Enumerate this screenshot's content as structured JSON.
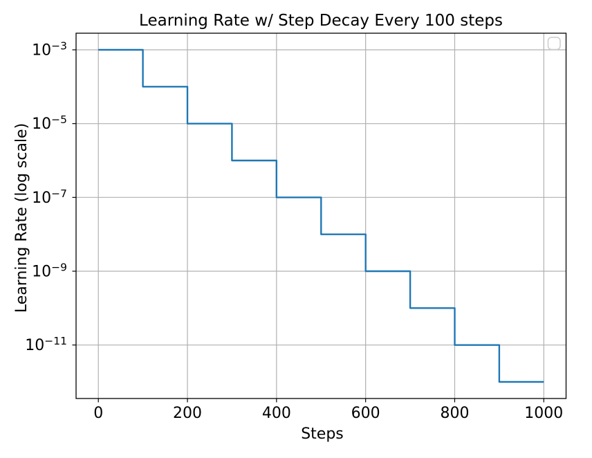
{
  "chart_data": {
    "type": "line",
    "line_style": "step-post",
    "title": "Learning Rate w/ Step Decay Every 100 steps",
    "xlabel": "Steps",
    "ylabel": "Learning Rate (log scale)",
    "x_ticks": [
      0,
      200,
      400,
      600,
      800,
      1000
    ],
    "y_scale": "log",
    "y_tick_exponents": [
      -3,
      -5,
      -7,
      -9,
      -11
    ],
    "xlim": [
      -50,
      1050
    ],
    "ylim_log10": [
      -12.45,
      -2.55
    ],
    "grid": true,
    "background_color": "#ffffff",
    "line_color": "#1f77b4",
    "grid_color": "#b0b0b0",
    "spine_color": "#000000",
    "legend": {
      "visible": true,
      "entries": [],
      "position": "upper right",
      "edge_color": "#cccccc"
    },
    "series": [
      {
        "name": "learning_rate",
        "initial_lr": 0.001,
        "decay_factor": 0.1,
        "decay_every_steps": 100,
        "segments": [
          {
            "x0": 0,
            "x1": 100,
            "lr": 0.001
          },
          {
            "x0": 100,
            "x1": 200,
            "lr": 0.0001
          },
          {
            "x0": 200,
            "x1": 300,
            "lr": 1e-05
          },
          {
            "x0": 300,
            "x1": 400,
            "lr": 1e-06
          },
          {
            "x0": 400,
            "x1": 500,
            "lr": 1e-07
          },
          {
            "x0": 500,
            "x1": 600,
            "lr": 1e-08
          },
          {
            "x0": 600,
            "x1": 700,
            "lr": 1e-09
          },
          {
            "x0": 700,
            "x1": 800,
            "lr": 1e-10
          },
          {
            "x0": 800,
            "x1": 900,
            "lr": 1e-11
          },
          {
            "x0": 900,
            "x1": 1000,
            "lr": 1e-12
          }
        ]
      }
    ]
  }
}
